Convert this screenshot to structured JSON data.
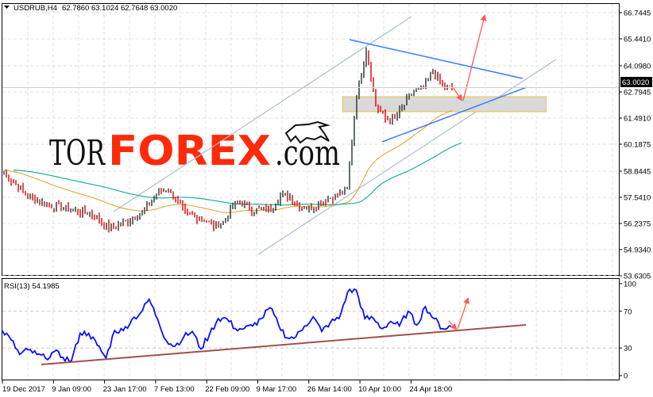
{
  "header": {
    "symbol": "USDRUB,H4",
    "ohlc": "62.7860 63.1024 62.7648 63.0020",
    "current_price": "63.0020"
  },
  "logo": {
    "part1": "TOR",
    "part2": "FOREX",
    "part3": ".com"
  },
  "colors": {
    "bull_bar": "#2f3f3f",
    "bear_bar": "#e01010",
    "ma_fast": "#e0a020",
    "ma_slow": "#20b0a0",
    "rsi": "#0a10ff",
    "trendline_blue": "#3a7dff",
    "channel": "#a8c0cc",
    "arrow": "#ff5a50",
    "rsi_trend": "#a05050",
    "zone_fill": "#d9d9d9",
    "zone_border": "#f0c040"
  },
  "chart_data": [
    {
      "type": "bar",
      "title": "USDRUB,H4",
      "y_ticks": [
        "66.7445",
        "65.4410",
        "64.0980",
        "62.7945",
        "61.4910",
        "60.1875",
        "58.8445",
        "57.5410",
        "56.2375",
        "54.9340",
        "53.6305"
      ],
      "ylim": [
        53.6305,
        67.05
      ],
      "x_ticks": [
        "19 Dec 2017",
        "9 Jan 09:00",
        "23 Jan 17:00",
        "7 Feb 13:00",
        "22 Feb 09:00",
        "9 Mar 17:00",
        "26 Mar 14:00",
        "10 Apr 10:00",
        "24 Apr 18:00"
      ],
      "grid": true,
      "close": [
        58.76,
        58.29,
        57.82,
        57.5,
        57.26,
        57.11,
        57.03,
        56.91,
        56.83,
        56.79,
        56.4,
        56.0,
        56.16,
        56.4,
        56.63,
        57.03,
        57.7,
        57.98,
        57.5,
        56.71,
        56.59,
        56.47,
        56.12,
        56.32,
        57.11,
        57.3,
        56.91,
        56.91,
        57.03,
        57.58,
        57.58,
        57.11,
        57.03,
        57.19,
        57.5,
        57.66,
        57.98,
        62.64,
        64.93,
        62.13,
        61.45,
        61.45,
        62.16,
        62.83,
        62.95,
        63.9,
        63.03,
        63.0
      ]
    },
    {
      "type": "line",
      "title": "RSI(13) 54.1985",
      "y_ticks": [
        "100",
        "70",
        "30",
        "0"
      ],
      "ylim": [
        0,
        100
      ],
      "levels": [
        70,
        30
      ],
      "values": [
        49,
        39,
        23,
        28,
        23,
        19,
        26,
        20,
        16,
        46,
        46,
        33,
        19,
        49,
        49,
        61,
        68,
        83,
        61,
        38,
        32,
        42,
        48,
        29,
        45,
        62,
        62,
        51,
        51,
        54,
        62,
        74,
        55,
        41,
        42,
        54,
        64,
        48,
        58,
        62,
        91,
        93,
        62,
        62,
        51,
        59,
        54,
        70,
        55,
        75,
        62,
        51,
        54
      ]
    }
  ]
}
